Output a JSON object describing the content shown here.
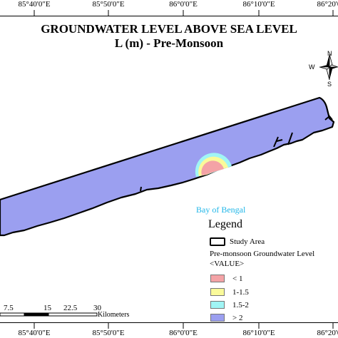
{
  "map": {
    "title_line1": "GROUNDWATER LEVEL ABOVE SEA LEVEL",
    "title_line2": "L (m) - Pre-Monsoon",
    "sea_label": "Bay of Bengal",
    "top_ticks": [
      "85°40'0\"E",
      "85°50'0\"E",
      "86°0'0\"E",
      "86°10'0\"E",
      "86°20'0\"E"
    ],
    "bottom_ticks": [
      "85°40'0\"E",
      "85°50'0\"E",
      "86°0'0\"E",
      "86°10'0\"E",
      "86°20'0\"E"
    ]
  },
  "north_arrow": {
    "n": "N",
    "s": "S",
    "e": "E",
    "w": "W"
  },
  "legend": {
    "title": "Legend",
    "study_area": "Study Area",
    "layer_title": "Pre-monsoon Groundwater Level",
    "value_label": "<VALUE>",
    "classes": [
      {
        "label": "< 1",
        "color": "#f4a3a6"
      },
      {
        "label": "1-1.5",
        "color": "#fafa9a"
      },
      {
        "label": "1.5-2",
        "color": "#a0f5f5"
      },
      {
        "label": "> 2",
        "color": "#9b9ff0"
      }
    ]
  },
  "scale_bar": {
    "labels": [
      "7.5",
      "15",
      "22.5",
      "30"
    ],
    "unit": "Kilometers"
  },
  "colors": {
    "land_default": "#9b9ff0",
    "sea_label": "#1fb6e8"
  }
}
